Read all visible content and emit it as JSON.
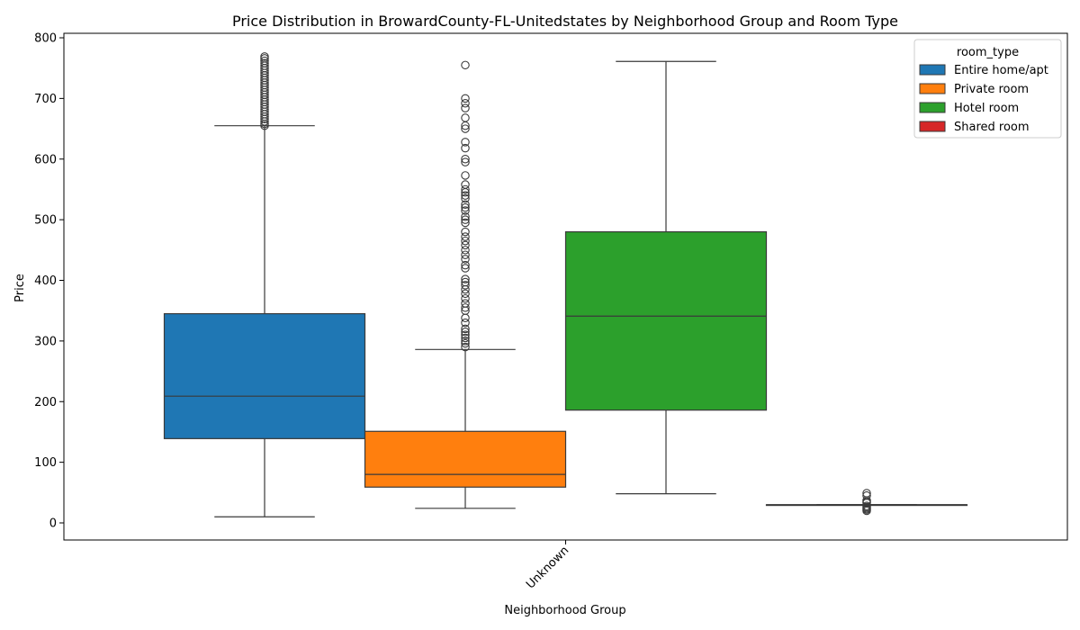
{
  "chart_data": {
    "type": "box",
    "title": "Price Distribution in BrowardCounty-FL-Unitedstates by Neighborhood Group and Room Type",
    "xlabel": "Neighborhood Group",
    "ylabel": "Price",
    "categories": [
      "Unknown"
    ],
    "ylim": [
      -28,
      808
    ],
    "yticks": [
      0,
      100,
      200,
      300,
      400,
      500,
      600,
      700,
      800
    ],
    "grid": false,
    "legend": {
      "title": "room_type",
      "position": "top-right"
    },
    "series": [
      {
        "name": "Entire home/apt",
        "color": "#1f77b4",
        "whisker_low": 10,
        "q1": 139,
        "median": 209,
        "q3": 345,
        "whisker_high": 655,
        "outliers": [
          655,
          658,
          662,
          666,
          670,
          674,
          678,
          682,
          686,
          690,
          694,
          698,
          702,
          706,
          710,
          714,
          718,
          722,
          726,
          730,
          734,
          738,
          742,
          746,
          750,
          754,
          758,
          762,
          766,
          769
        ]
      },
      {
        "name": "Private room",
        "color": "#ff7f0e",
        "whisker_low": 24,
        "q1": 59,
        "median": 80,
        "q3": 151,
        "whisker_high": 286,
        "outliers": [
          290,
          296,
          300,
          305,
          310,
          315,
          320,
          330,
          338,
          350,
          355,
          362,
          370,
          378,
          385,
          392,
          397,
          402,
          420,
          425,
          435,
          442,
          450,
          458,
          465,
          472,
          480,
          495,
          500,
          505,
          515,
          520,
          525,
          535,
          540,
          545,
          550,
          558,
          573,
          595,
          600,
          618,
          628,
          650,
          655,
          668,
          684,
          692,
          700,
          755
        ]
      },
      {
        "name": "Hotel room",
        "color": "#2ca02c",
        "whisker_low": 48,
        "q1": 186,
        "median": 341,
        "q3": 480,
        "whisker_high": 761,
        "outliers": []
      },
      {
        "name": "Shared room",
        "color": "#d62728",
        "whisker_low": 30,
        "q1": 30,
        "median": 30,
        "q3": 30,
        "whisker_high": 30,
        "outliers": [
          20,
          22,
          24,
          26,
          28,
          33,
          35,
          37,
          45,
          49
        ]
      }
    ]
  }
}
